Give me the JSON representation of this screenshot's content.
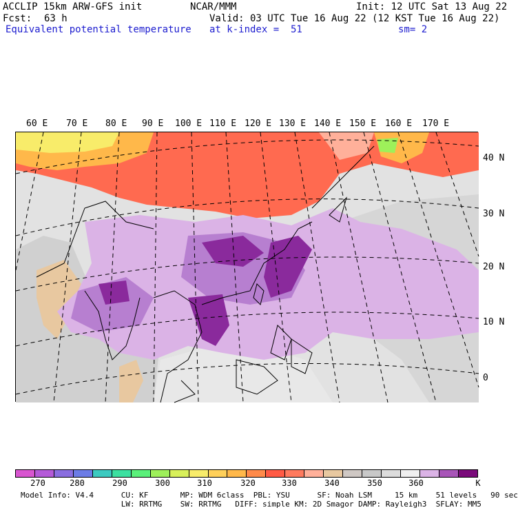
{
  "header": {
    "model": "ACCLIP 15km ARW-GFS init",
    "center": "NCAR/MMM",
    "init": "Init: 12 UTC Sat 13 Aug 22",
    "fcst_label": "Fcst:",
    "fcst_value": "63 h",
    "valid": "Valid: 03 UTC Tue 16 Aug 22 (12 KST Tue 16 Aug 22)",
    "field": "Equivalent potential temperature",
    "level": "at k-index =  51",
    "smooth": "sm= 2"
  },
  "map": {
    "lon_labels": [
      "60 E",
      "70 E",
      "80 E",
      "90 E",
      "100 E",
      "110 E",
      "120 E",
      "130 E",
      "140 E",
      "150 E",
      "160 E",
      "170 E"
    ],
    "lat_labels": [
      "40 N",
      "30 N",
      "20 N",
      "10 N",
      "0"
    ],
    "colors": {
      "ocean_base": "#e2e2e2",
      "high_theta": "#ff6a50",
      "warm": "#ffb84a",
      "yellow": "#f8ec6a",
      "green": "#9ef05a",
      "light_purple": "#dbb3e6",
      "mid_purple": "#b77fd0",
      "dark_purple": "#8a2a9c",
      "grey": "#cfcfcf",
      "tan": "#e8c8a0"
    }
  },
  "colorbar": {
    "colors": [
      "#d855d0",
      "#b45ad8",
      "#8a6ee0",
      "#6c7ce6",
      "#3ccac0",
      "#3ce0a0",
      "#5af07a",
      "#9ef05a",
      "#d8f05a",
      "#f8ec6a",
      "#ffd05a",
      "#ffb84a",
      "#ff8a4a",
      "#ff5a44",
      "#ff7a5e",
      "#ffb09a",
      "#e8c8a0",
      "#cfc8c4",
      "#c8c8c8",
      "#dcdcdc",
      "#f0f0f0",
      "#dbb3e6",
      "#a855b8",
      "#7a0a7a"
    ],
    "ticks": [
      "270",
      "280",
      "290",
      "300",
      "310",
      "320",
      "330",
      "340",
      "350",
      "360"
    ],
    "unit": "K"
  },
  "footer": {
    "line1": "Model Info: V4.4      CU: KF       MP: WDM 6class  PBL: YSU      SF: Noah LSM     15 km    51 levels   90 sec",
    "line2": "                      LW: RRTMG    SW: RRTMG   DIFF: simple KM: 2D Smagor DAMP: Rayleigh3  SFLAY: MM5"
  }
}
